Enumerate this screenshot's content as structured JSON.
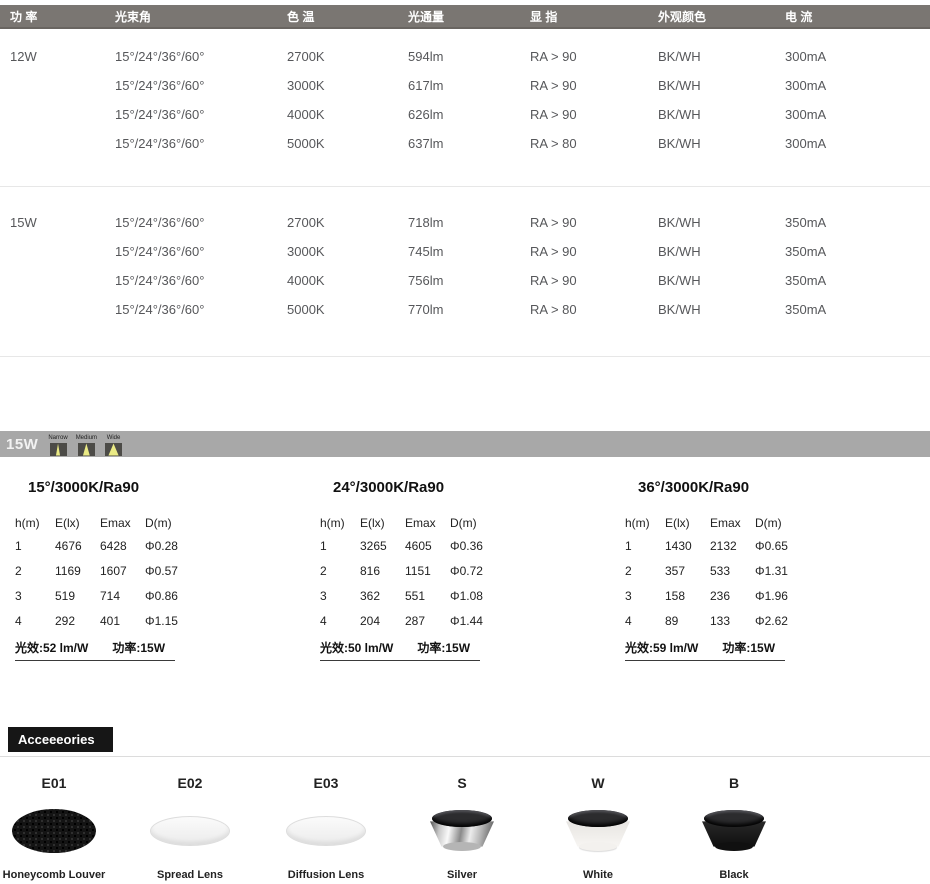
{
  "spec_table": {
    "headers": [
      "功 率",
      "光束角",
      "色 温",
      "光通量",
      "显 指",
      "外观颜色",
      "电 流"
    ],
    "rows": [
      [
        "12W",
        "15°/24°/36°/60°",
        "2700K",
        "594lm",
        "RA > 90",
        "BK/WH",
        "300mA"
      ],
      [
        "",
        "15°/24°/36°/60°",
        "3000K",
        "617lm",
        "RA > 90",
        "BK/WH",
        "300mA"
      ],
      [
        "",
        "15°/24°/36°/60°",
        "4000K",
        "626lm",
        "RA > 90",
        "BK/WH",
        "300mA"
      ],
      [
        "",
        "15°/24°/36°/60°",
        "5000K",
        "637lm",
        "RA > 80",
        "BK/WH",
        "300mA"
      ],
      [
        "15W",
        "15°/24°/36°/60°",
        "2700K",
        "718lm",
        "RA > 90",
        "BK/WH",
        "350mA"
      ],
      [
        "",
        "15°/24°/36°/60°",
        "3000K",
        "745lm",
        "RA > 90",
        "BK/WH",
        "350mA"
      ],
      [
        "",
        "15°/24°/36°/60°",
        "4000K",
        "756lm",
        "RA > 90",
        "BK/WH",
        "350mA"
      ],
      [
        "",
        "15°/24°/36°/60°",
        "5000K",
        "770lm",
        "RA > 80",
        "BK/WH",
        "350mA"
      ]
    ]
  },
  "photometrics": {
    "bar_label": "15W",
    "beam_icons": [
      {
        "label": "Narrow"
      },
      {
        "label": "Medium"
      },
      {
        "label": "Wide"
      }
    ],
    "tables": [
      {
        "title": "15°/3000K/Ra90",
        "headers": [
          "h(m)",
          "E(lx)",
          "Emax",
          "D(m)"
        ],
        "rows": [
          [
            "1",
            "4676",
            "6428",
            "Φ0.28"
          ],
          [
            "2",
            "1169",
            "1607",
            "Φ0.57"
          ],
          [
            "3",
            "519",
            "714",
            "Φ0.86"
          ],
          [
            "4",
            "292",
            "401",
            "Φ1.15"
          ]
        ],
        "efficacy": "光效:52 lm/W",
        "power": "功率:15W"
      },
      {
        "title": "24°/3000K/Ra90",
        "headers": [
          "h(m)",
          "E(lx)",
          "Emax",
          "D(m)"
        ],
        "rows": [
          [
            "1",
            "3265",
            "4605",
            "Φ0.36"
          ],
          [
            "2",
            "816",
            "1151",
            "Φ0.72"
          ],
          [
            "3",
            "362",
            "551",
            "Φ1.08"
          ],
          [
            "4",
            "204",
            "287",
            "Φ1.44"
          ]
        ],
        "efficacy": "光效:50 lm/W",
        "power": "功率:15W"
      },
      {
        "title": "36°/3000K/Ra90",
        "headers": [
          "h(m)",
          "E(lx)",
          "Emax",
          "D(m)"
        ],
        "rows": [
          [
            "1",
            "1430",
            "2132",
            "Φ0.65"
          ],
          [
            "2",
            "357",
            "533",
            "Φ1.31"
          ],
          [
            "3",
            "158",
            "236",
            "Φ1.96"
          ],
          [
            "4",
            "89",
            "133",
            "Φ2.62"
          ]
        ],
        "efficacy": "光效:59 lm/W",
        "power": "功率:15W"
      }
    ]
  },
  "accessories": {
    "title": "Acceeeories",
    "items": [
      {
        "code": "E01",
        "label": "Honeycomb Louver"
      },
      {
        "code": "E02",
        "label": "Spread Lens"
      },
      {
        "code": "E03",
        "label": "Diffusion Lens"
      },
      {
        "code": "S",
        "label": "Silver"
      },
      {
        "code": "W",
        "label": "White"
      },
      {
        "code": "B",
        "label": "Black"
      }
    ]
  },
  "colors": {
    "header_bar": "#7a7672",
    "photo_bar": "#a8a8a8",
    "beam_yellow": "#eaea85",
    "accessories_box": "#161616"
  }
}
